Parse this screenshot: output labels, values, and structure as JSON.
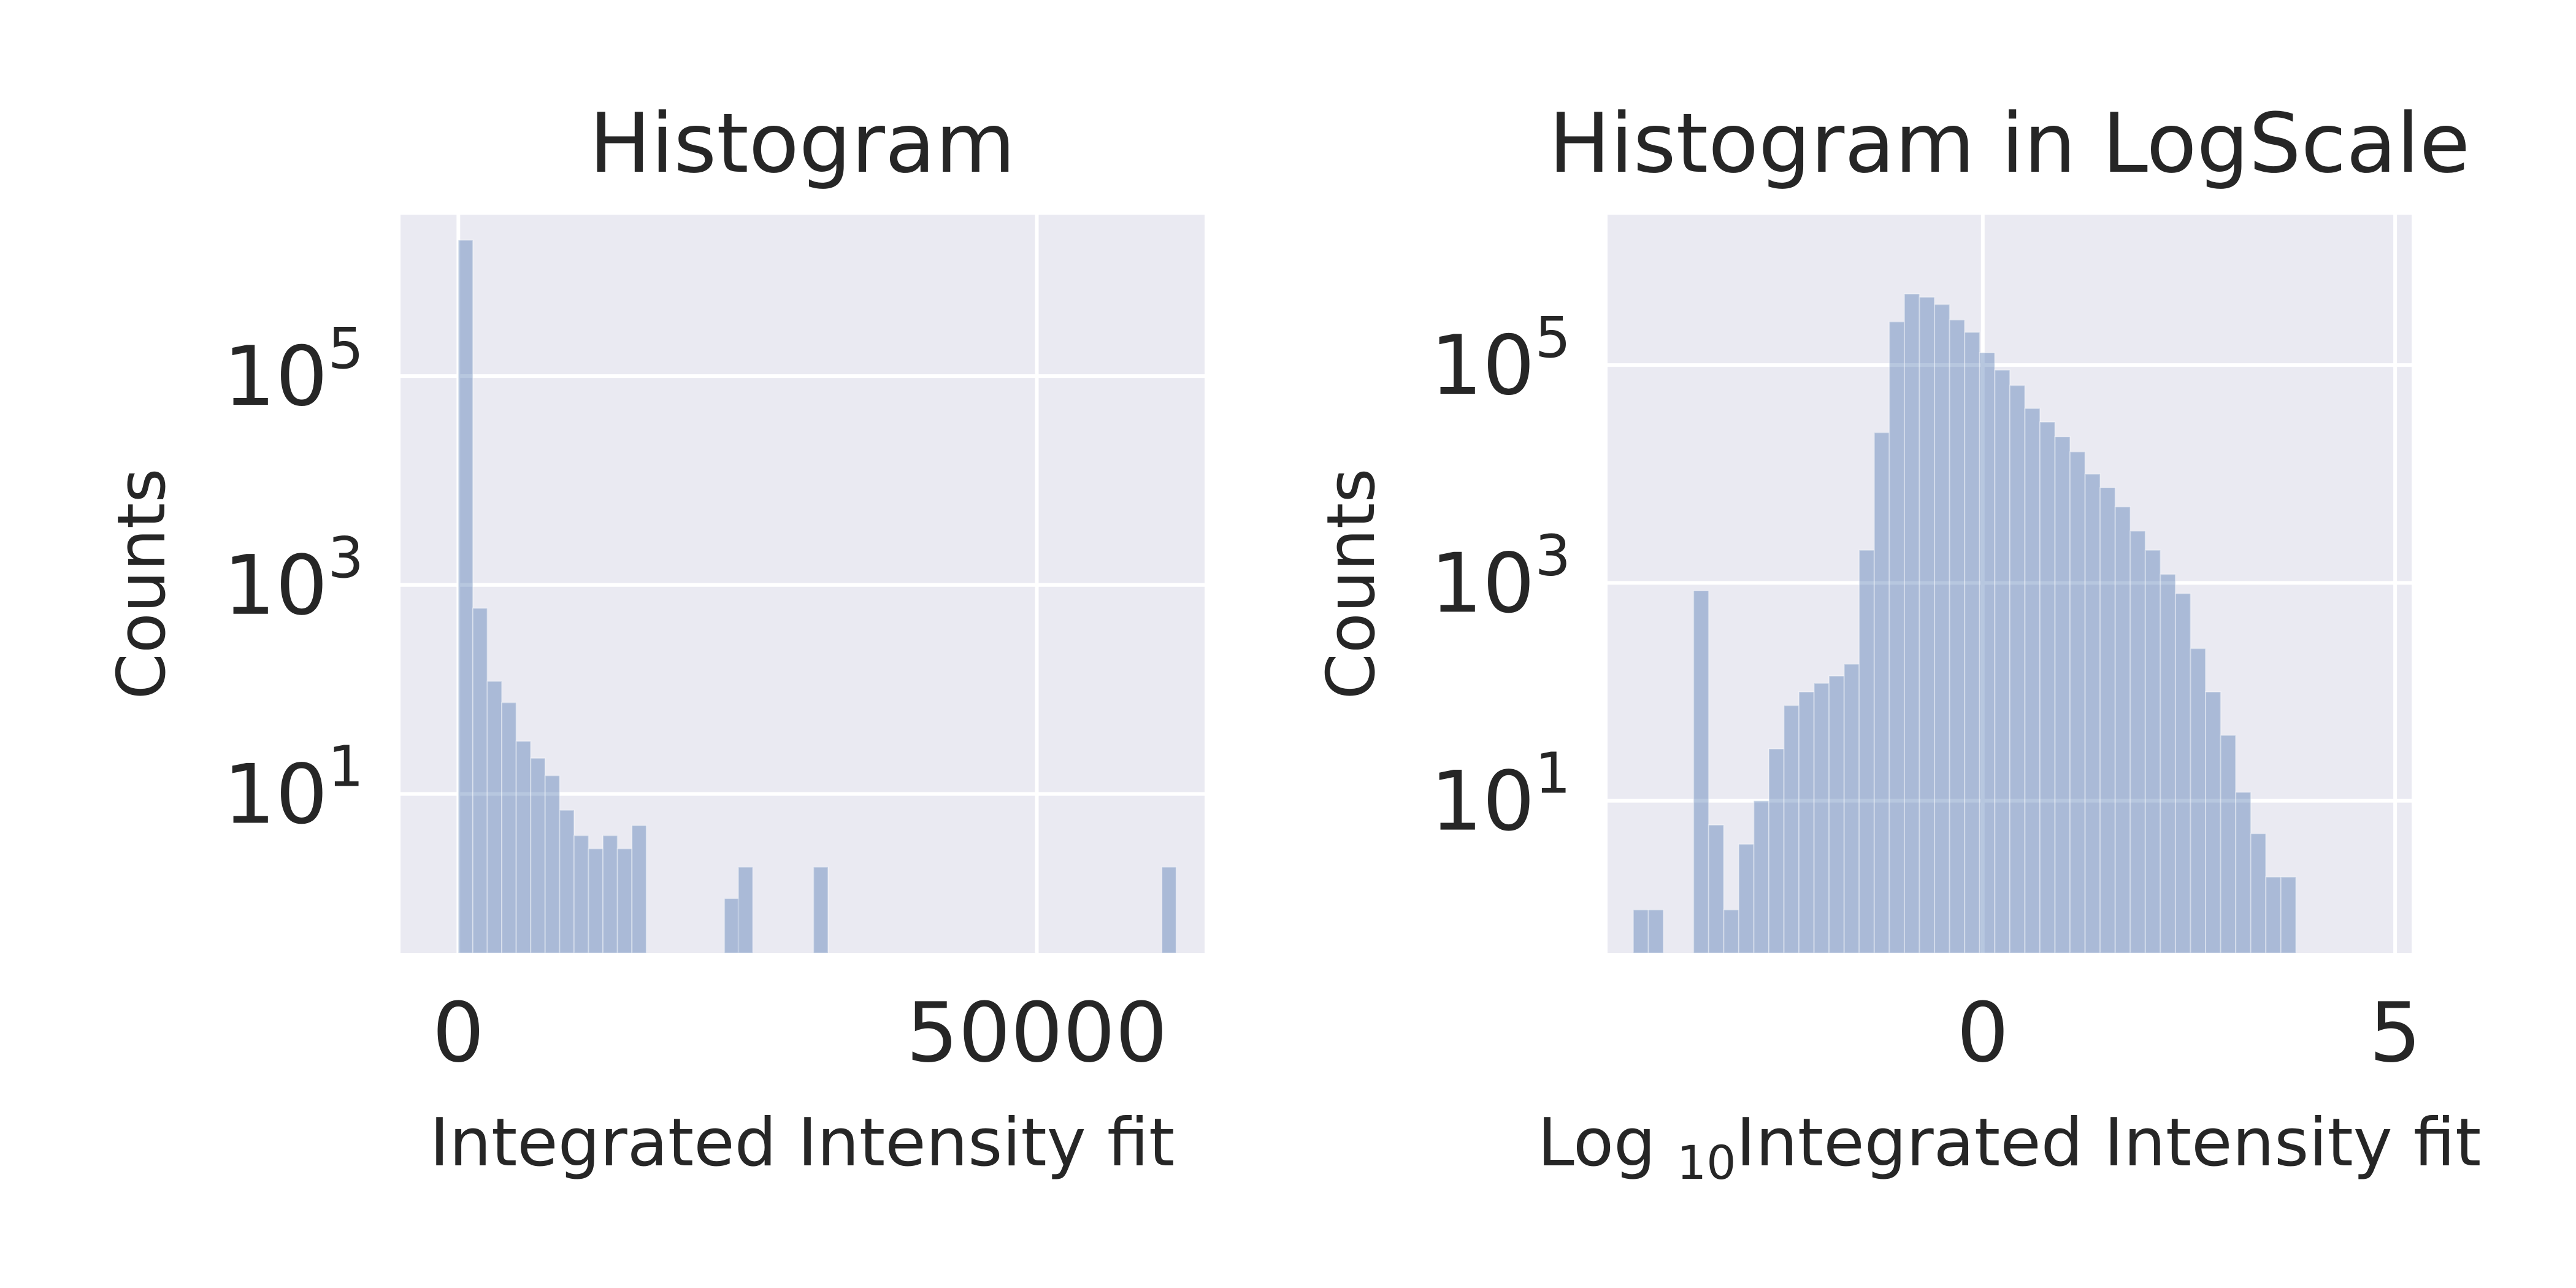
{
  "chart_data": [
    {
      "type": "bar",
      "title": "Histogram",
      "xlabel": "Integrated Intensity fit",
      "ylabel": "Counts",
      "yscale": "log",
      "grid": true,
      "xlim": [
        -5000,
        64500
      ],
      "ylim": [
        0.3,
        3500000
      ],
      "xticks": [
        {
          "value": 0,
          "label": "0"
        },
        {
          "value": 50000,
          "label": "50000"
        }
      ],
      "yticks": [
        {
          "value": 10,
          "base": "10",
          "exp": "1"
        },
        {
          "value": 1000,
          "base": "10",
          "exp": "3"
        },
        {
          "value": 100000,
          "base": "10",
          "exp": "5"
        }
      ],
      "bin_width": 1250,
      "bin_start": 0,
      "values": [
        2000000,
        600,
        120,
        75,
        32,
        22,
        15,
        7,
        4,
        3,
        4,
        3,
        5,
        0,
        0,
        0,
        0,
        0,
        0,
        0,
        0,
        0,
        0,
        0,
        0,
        0,
        0,
        0,
        0,
        0,
        0,
        0,
        0,
        0,
        0,
        0,
        0,
        0,
        0,
        0,
        0,
        0,
        0,
        0,
        0,
        0,
        0,
        0,
        0,
        0
      ],
      "extra_bars": [
        {
          "x": 23000,
          "value": 1
        },
        {
          "x": 24200,
          "value": 2
        },
        {
          "x": 30700,
          "value": 2
        },
        {
          "x": 60800,
          "value": 2
        }
      ]
    },
    {
      "type": "bar",
      "title": "Histogram in LogScale",
      "xlabel_prefix": "Log ",
      "xlabel_sub": "10",
      "xlabel_main": "Integrated Intensity fit",
      "ylabel": "Counts",
      "yscale": "log",
      "grid": true,
      "xlim": [
        -4.55,
        5.2
      ],
      "ylim": [
        0.4,
        2400000
      ],
      "xticks": [
        {
          "value": 0,
          "label": "0"
        },
        {
          "value": 5,
          "label": "5"
        }
      ],
      "yticks": [
        {
          "value": 10,
          "base": "10",
          "exp": "1"
        },
        {
          "value": 1000,
          "base": "10",
          "exp": "3"
        },
        {
          "value": 100000,
          "base": "10",
          "exp": "5"
        }
      ],
      "bin_start": -4.42,
      "bin_width": 0.1826,
      "values": [
        0,
        1,
        1,
        0,
        0,
        850,
        6,
        1,
        4,
        10,
        30,
        75,
        100,
        120,
        140,
        180,
        2000,
        24000,
        250000,
        450000,
        420000,
        360000,
        260000,
        200000,
        130000,
        90000,
        65000,
        40000,
        30000,
        22000,
        16000,
        10000,
        7500,
        5000,
        3000,
        2000,
        1200,
        800,
        250,
        100,
        40,
        12,
        5,
        2,
        2
      ]
    }
  ]
}
